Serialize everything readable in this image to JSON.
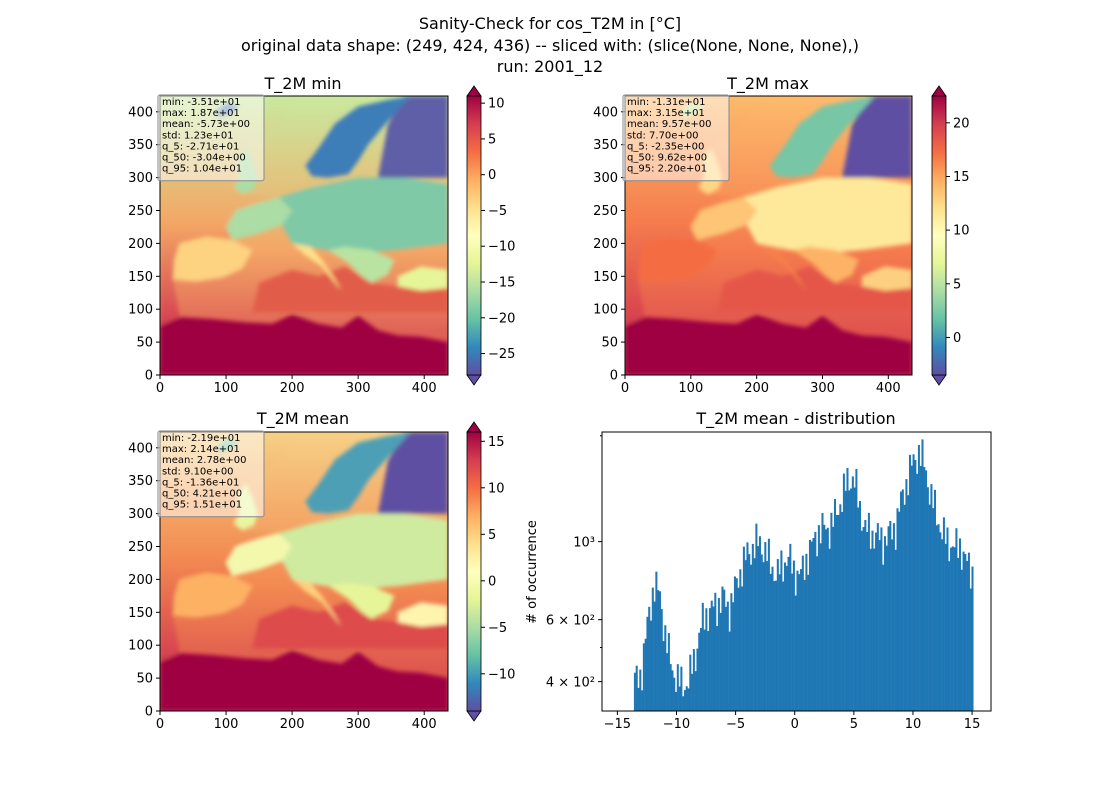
{
  "figure": {
    "suptitle": [
      "Sanity-Check for cos_T2M in [°C]",
      "original data shape: (249, 424, 436) -- sliced with: (slice(None, None, None),)",
      "run: 2001_12"
    ]
  },
  "chart_data": [
    {
      "type": "heatmap",
      "title": "T_2M min",
      "xlim": [
        0,
        436
      ],
      "ylim": [
        0,
        424
      ],
      "xticks": [
        "0",
        "100",
        "200",
        "300",
        "400"
      ],
      "yticks": [
        "0",
        "50",
        "100",
        "150",
        "200",
        "250",
        "300",
        "350",
        "400"
      ],
      "colormap": "Spectral_r",
      "colorbar": {
        "range": [
          -28,
          11
        ],
        "ticks": [
          "10",
          "5",
          "0",
          "−5",
          "−10",
          "−15",
          "−20",
          "−25"
        ]
      },
      "stats": [
        "min: -3.51e+01",
        "max: 1.87e+01",
        "mean: -5.73e+00",
        "std: 1.23e+01",
        "q_5: -2.71e+01",
        "q_50: -3.04e+00",
        "q_95: 1.04e+01"
      ]
    },
    {
      "type": "heatmap",
      "title": "T_2M max",
      "xlim": [
        0,
        436
      ],
      "ylim": [
        0,
        424
      ],
      "xticks": [
        "0",
        "100",
        "200",
        "300",
        "400"
      ],
      "yticks": [
        "0",
        "50",
        "100",
        "150",
        "200",
        "250",
        "300",
        "350",
        "400"
      ],
      "colormap": "Spectral_r",
      "colorbar": {
        "range": [
          -3.5,
          22.5
        ],
        "ticks": [
          "20",
          "15",
          "10",
          "5",
          "0"
        ]
      },
      "stats": [
        "min: -1.31e+01",
        "max: 3.15e+01",
        "mean: 9.57e+00",
        "std: 7.70e+00",
        "q_5: -2.35e+00",
        "q_50: 9.62e+00",
        "q_95: 2.20e+01"
      ]
    },
    {
      "type": "heatmap",
      "title": "T_2M mean",
      "xlim": [
        0,
        436
      ],
      "ylim": [
        0,
        424
      ],
      "xticks": [
        "0",
        "100",
        "200",
        "300",
        "400"
      ],
      "yticks": [
        "0",
        "50",
        "100",
        "150",
        "200",
        "250",
        "300",
        "350",
        "400"
      ],
      "colormap": "Spectral_r",
      "colorbar": {
        "range": [
          -14,
          16
        ],
        "ticks": [
          "15",
          "10",
          "5",
          "0",
          "−5",
          "−10"
        ]
      },
      "stats": [
        "min: -2.19e+01",
        "max: 2.14e+01",
        "mean: 2.78e+00",
        "std: 9.10e+00",
        "q_5: -1.36e+01",
        "q_50: 4.21e+00",
        "q_95: 1.51e+01"
      ]
    },
    {
      "type": "bar",
      "title": "T_2M mean - distribution",
      "ylabel": "# of occurrence",
      "xlabel": "",
      "yscale": "log",
      "xlim": [
        -16.3,
        16.6
      ],
      "ylim": [
        330,
        2050
      ],
      "xticks": [
        "−15",
        "−10",
        "−5",
        "0",
        "5",
        "10",
        "15"
      ],
      "yticks": [
        "4 × 10²",
        "6 × 10²",
        "10³"
      ],
      "color": "#1f77b4",
      "bin_range": [
        -13.6,
        15.1
      ],
      "bin_count": 190,
      "counts_anchor_x": [
        -13.6,
        -13.0,
        -12.4,
        -11.9,
        -11.4,
        -10.9,
        -10.4,
        -10.0,
        -9.5,
        -9.0,
        -8.4,
        -8.0,
        -7.6,
        -7.1,
        -6.6,
        -6.1,
        -5.6,
        -5.1,
        -4.5,
        -4.0,
        -3.5,
        -3.0,
        -2.5,
        -2.0,
        -1.5,
        -1.0,
        -0.5,
        0.0,
        0.5,
        1.0,
        1.5,
        2.0,
        2.5,
        3.0,
        3.5,
        4.0,
        4.5,
        5.0,
        5.5,
        6.0,
        6.5,
        7.0,
        7.5,
        8.0,
        8.5,
        9.0,
        9.5,
        10.0,
        10.5,
        11.0,
        11.5,
        12.0,
        12.5,
        13.0,
        13.5,
        14.0,
        14.5,
        15.1
      ],
      "counts_anchor_y": [
        400,
        420,
        600,
        760,
        700,
        530,
        440,
        410,
        390,
        400,
        480,
        560,
        620,
        640,
        660,
        700,
        640,
        720,
        850,
        920,
        970,
        1000,
        940,
        860,
        800,
        870,
        900,
        820,
        800,
        900,
        980,
        1070,
        1090,
        1100,
        1200,
        1340,
        1500,
        1520,
        1250,
        1080,
        1060,
        1040,
        1000,
        1050,
        1100,
        1300,
        1500,
        1680,
        1800,
        1650,
        1350,
        1200,
        1050,
        1000,
        960,
        980,
        870,
        820
      ]
    }
  ]
}
